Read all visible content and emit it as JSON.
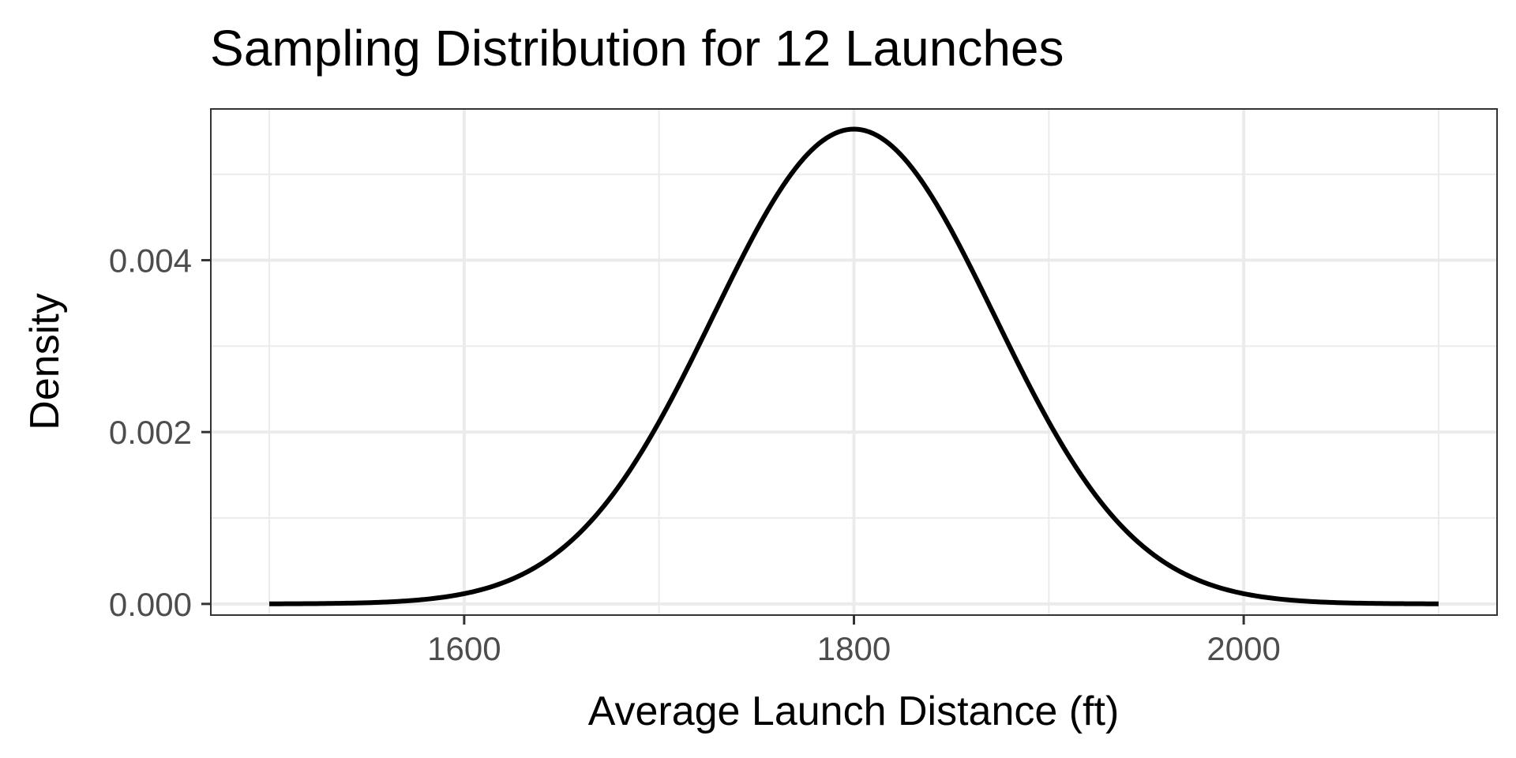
{
  "chart_data": {
    "type": "line",
    "title": "Sampling Distribution for 12 Launches",
    "xlabel": "Average Launch Distance (ft)",
    "ylabel": "Density",
    "xlim": [
      1470,
      2130
    ],
    "ylim": [
      -0.00013,
      0.00576
    ],
    "x_ticks": [
      1600,
      1800,
      2000
    ],
    "x_tick_labels": [
      "1600",
      "1800",
      "2000"
    ],
    "x_minor_ticks": [
      1500,
      1700,
      1900,
      2100
    ],
    "y_ticks": [
      0.0,
      0.002,
      0.004
    ],
    "y_tick_labels": [
      "0.000",
      "0.002",
      "0.004"
    ],
    "y_minor_ticks": [
      0.001,
      0.003,
      0.005
    ],
    "grid": true,
    "series": [
      {
        "distribution": "normal",
        "mean": 1800,
        "sd": 72.2,
        "x_range": [
          1500,
          2100
        ],
        "color": "#000000"
      }
    ]
  }
}
